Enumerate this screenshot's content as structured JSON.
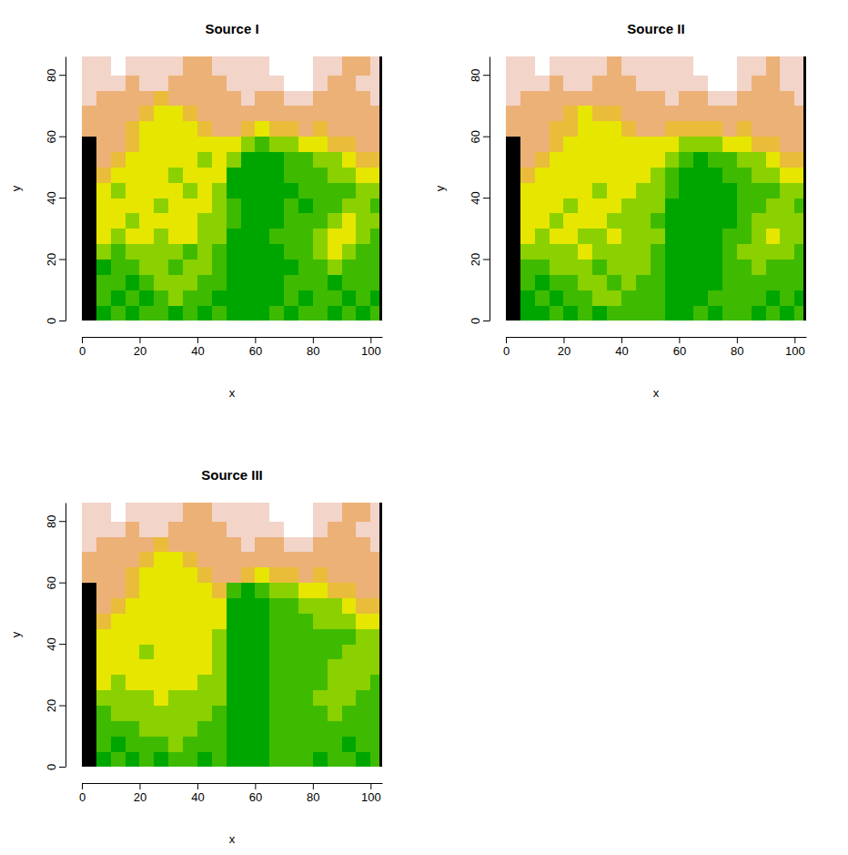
{
  "chart_data": [
    {
      "type": "heatmap",
      "title": "Source I",
      "xlabel": "x",
      "ylabel": "y",
      "xlim": [
        0,
        104
      ],
      "ylim": [
        0,
        86
      ],
      "xticks": [
        0,
        20,
        40,
        60,
        80,
        100
      ],
      "yticks": [
        0,
        20,
        40,
        60,
        80
      ],
      "x_breaks": [
        0,
        5,
        10,
        15,
        20,
        25,
        30,
        35,
        40,
        45,
        50,
        55,
        60,
        65,
        70,
        75,
        80,
        85,
        90,
        95,
        100,
        103,
        104
      ],
      "y_breaks": [
        0,
        5,
        10,
        15,
        20,
        25,
        30,
        35,
        40,
        45,
        50,
        55,
        60,
        65,
        70,
        75,
        80,
        86
      ],
      "colors": [
        "#000000",
        "#00A600",
        "#3EBB00",
        "#8BD000",
        "#E6E600",
        "#E9BD3A",
        "#ECB176",
        "#F2D4C9",
        "#FFFFFF"
      ],
      "cells": [
        [
          0,
          1,
          2,
          1,
          2,
          2,
          1,
          2,
          1,
          2,
          1,
          1,
          1,
          2,
          1,
          2,
          2,
          1,
          2,
          1,
          2,
          0
        ],
        [
          0,
          2,
          1,
          2,
          1,
          2,
          3,
          2,
          2,
          1,
          1,
          1,
          1,
          1,
          2,
          1,
          2,
          2,
          1,
          2,
          1,
          0
        ],
        [
          0,
          2,
          2,
          1,
          2,
          3,
          3,
          3,
          2,
          2,
          1,
          1,
          1,
          1,
          2,
          2,
          2,
          1,
          2,
          2,
          2,
          0
        ],
        [
          0,
          1,
          2,
          2,
          3,
          3,
          2,
          3,
          3,
          2,
          1,
          1,
          1,
          1,
          1,
          2,
          2,
          3,
          2,
          2,
          2,
          0
        ],
        [
          0,
          3,
          2,
          3,
          3,
          3,
          3,
          2,
          3,
          2,
          1,
          1,
          1,
          1,
          2,
          2,
          3,
          4,
          3,
          2,
          2,
          0
        ],
        [
          0,
          4,
          3,
          4,
          4,
          3,
          4,
          4,
          3,
          3,
          1,
          1,
          1,
          2,
          2,
          2,
          3,
          4,
          4,
          3,
          2,
          0
        ],
        [
          0,
          4,
          4,
          3,
          4,
          4,
          4,
          4,
          3,
          3,
          2,
          1,
          1,
          1,
          2,
          2,
          2,
          3,
          4,
          3,
          3,
          0
        ],
        [
          0,
          4,
          4,
          4,
          4,
          3,
          4,
          4,
          4,
          3,
          2,
          1,
          1,
          1,
          2,
          1,
          2,
          2,
          3,
          3,
          2,
          0
        ],
        [
          0,
          4,
          3,
          4,
          4,
          4,
          4,
          3,
          4,
          3,
          1,
          1,
          1,
          1,
          1,
          2,
          2,
          2,
          2,
          3,
          3,
          0
        ],
        [
          0,
          5,
          4,
          4,
          4,
          4,
          3,
          4,
          4,
          4,
          1,
          1,
          1,
          1,
          2,
          2,
          2,
          3,
          3,
          4,
          4,
          0
        ],
        [
          0,
          6,
          5,
          4,
          4,
          4,
          4,
          4,
          3,
          4,
          3,
          1,
          1,
          1,
          2,
          2,
          3,
          3,
          4,
          5,
          5,
          0
        ],
        [
          0,
          6,
          6,
          5,
          4,
          4,
          4,
          4,
          4,
          4,
          4,
          3,
          2,
          3,
          3,
          4,
          4,
          5,
          5,
          6,
          6,
          0
        ],
        [
          6,
          6,
          6,
          5,
          4,
          4,
          4,
          4,
          5,
          6,
          6,
          5,
          4,
          5,
          5,
          6,
          5,
          6,
          6,
          6,
          6,
          0
        ],
        [
          6,
          6,
          6,
          6,
          5,
          4,
          4,
          5,
          6,
          6,
          6,
          6,
          6,
          6,
          6,
          6,
          6,
          6,
          6,
          6,
          6,
          0
        ],
        [
          7,
          6,
          6,
          6,
          6,
          5,
          6,
          6,
          6,
          6,
          6,
          7,
          6,
          6,
          7,
          7,
          6,
          6,
          6,
          6,
          7,
          0
        ],
        [
          7,
          7,
          7,
          6,
          7,
          7,
          6,
          6,
          6,
          6,
          7,
          7,
          7,
          7,
          8,
          8,
          7,
          6,
          6,
          7,
          7,
          0
        ],
        [
          7,
          7,
          8,
          7,
          7,
          7,
          7,
          6,
          6,
          7,
          7,
          7,
          7,
          8,
          8,
          8,
          7,
          7,
          6,
          6,
          7,
          0
        ]
      ]
    },
    {
      "type": "heatmap",
      "title": "Source II",
      "xlabel": "x",
      "ylabel": "y",
      "xlim": [
        0,
        104
      ],
      "ylim": [
        0,
        86
      ],
      "xticks": [
        0,
        20,
        40,
        60,
        80,
        100
      ],
      "yticks": [
        0,
        20,
        40,
        60,
        80
      ],
      "x_breaks": [
        0,
        5,
        10,
        15,
        20,
        25,
        30,
        35,
        40,
        45,
        50,
        55,
        60,
        65,
        70,
        75,
        80,
        85,
        90,
        95,
        100,
        103,
        104
      ],
      "y_breaks": [
        0,
        5,
        10,
        15,
        20,
        25,
        30,
        35,
        40,
        45,
        50,
        55,
        60,
        65,
        70,
        75,
        80,
        86
      ],
      "colors": [
        "#000000",
        "#00A600",
        "#3EBB00",
        "#8BD000",
        "#E6E600",
        "#E9BD3A",
        "#ECB176",
        "#F2D4C9",
        "#FFFFFF"
      ],
      "cells": [
        [
          0,
          1,
          1,
          2,
          1,
          2,
          1,
          2,
          2,
          2,
          2,
          1,
          1,
          2,
          1,
          2,
          2,
          1,
          2,
          1,
          2,
          0
        ],
        [
          0,
          1,
          2,
          1,
          2,
          2,
          3,
          3,
          2,
          2,
          2,
          1,
          1,
          1,
          2,
          2,
          2,
          2,
          1,
          2,
          1,
          0
        ],
        [
          0,
          2,
          1,
          2,
          2,
          3,
          3,
          2,
          3,
          2,
          2,
          1,
          1,
          1,
          1,
          2,
          2,
          2,
          2,
          2,
          2,
          0
        ],
        [
          0,
          2,
          2,
          3,
          3,
          3,
          2,
          3,
          3,
          3,
          2,
          1,
          1,
          1,
          1,
          2,
          2,
          3,
          2,
          2,
          2,
          0
        ],
        [
          0,
          3,
          3,
          3,
          3,
          4,
          3,
          3,
          3,
          3,
          2,
          1,
          1,
          1,
          1,
          2,
          3,
          3,
          3,
          3,
          2,
          0
        ],
        [
          0,
          4,
          3,
          4,
          4,
          3,
          3,
          4,
          3,
          3,
          3,
          1,
          1,
          1,
          1,
          2,
          2,
          3,
          4,
          3,
          3,
          0
        ],
        [
          0,
          4,
          4,
          3,
          4,
          4,
          4,
          3,
          3,
          3,
          2,
          1,
          1,
          1,
          1,
          1,
          2,
          3,
          3,
          3,
          3,
          0
        ],
        [
          0,
          4,
          4,
          4,
          3,
          4,
          4,
          4,
          3,
          3,
          3,
          1,
          1,
          1,
          1,
          1,
          2,
          2,
          3,
          3,
          2,
          0
        ],
        [
          0,
          4,
          4,
          4,
          4,
          4,
          3,
          4,
          4,
          3,
          3,
          2,
          1,
          1,
          1,
          1,
          2,
          2,
          2,
          3,
          3,
          0
        ],
        [
          0,
          5,
          4,
          4,
          4,
          4,
          4,
          4,
          4,
          4,
          3,
          2,
          1,
          1,
          1,
          2,
          2,
          3,
          3,
          4,
          4,
          0
        ],
        [
          0,
          6,
          5,
          4,
          4,
          4,
          4,
          4,
          4,
          4,
          4,
          3,
          2,
          1,
          2,
          2,
          3,
          3,
          4,
          5,
          5,
          0
        ],
        [
          0,
          6,
          6,
          5,
          4,
          4,
          4,
          4,
          4,
          4,
          4,
          4,
          3,
          3,
          3,
          4,
          4,
          5,
          5,
          6,
          6,
          0
        ],
        [
          6,
          6,
          6,
          5,
          5,
          4,
          4,
          4,
          5,
          6,
          6,
          5,
          5,
          5,
          5,
          6,
          5,
          6,
          6,
          6,
          6,
          0
        ],
        [
          6,
          6,
          6,
          6,
          5,
          4,
          5,
          5,
          6,
          6,
          6,
          6,
          6,
          6,
          6,
          6,
          6,
          6,
          6,
          6,
          6,
          0
        ],
        [
          7,
          6,
          6,
          6,
          6,
          6,
          6,
          6,
          6,
          6,
          6,
          7,
          6,
          6,
          7,
          7,
          6,
          6,
          6,
          6,
          7,
          0
        ],
        [
          7,
          7,
          7,
          6,
          7,
          7,
          6,
          6,
          6,
          7,
          7,
          7,
          7,
          7,
          8,
          8,
          7,
          6,
          6,
          7,
          7,
          0
        ],
        [
          7,
          7,
          8,
          7,
          7,
          7,
          7,
          6,
          7,
          7,
          7,
          7,
          7,
          8,
          8,
          8,
          7,
          7,
          6,
          7,
          7,
          0
        ]
      ]
    },
    {
      "type": "heatmap",
      "title": "Source III",
      "xlabel": "x",
      "ylabel": "y",
      "xlim": [
        0,
        104
      ],
      "ylim": [
        0,
        86
      ],
      "xticks": [
        0,
        20,
        40,
        60,
        80,
        100
      ],
      "yticks": [
        0,
        20,
        40,
        60,
        80
      ],
      "x_breaks": [
        0,
        5,
        10,
        15,
        20,
        25,
        30,
        35,
        40,
        45,
        50,
        55,
        60,
        65,
        70,
        75,
        80,
        85,
        90,
        95,
        100,
        103,
        104
      ],
      "y_breaks": [
        0,
        5,
        10,
        15,
        20,
        25,
        30,
        35,
        40,
        45,
        50,
        55,
        60,
        65,
        70,
        75,
        80,
        86
      ],
      "colors": [
        "#000000",
        "#00A600",
        "#3EBB00",
        "#8BD000",
        "#E6E600",
        "#E9BD3A",
        "#ECB176",
        "#F2D4C9",
        "#FFFFFF"
      ],
      "cells": [
        [
          0,
          1,
          2,
          1,
          2,
          1,
          2,
          2,
          1,
          2,
          1,
          1,
          1,
          2,
          2,
          2,
          1,
          2,
          2,
          1,
          2,
          0
        ],
        [
          0,
          2,
          1,
          2,
          2,
          2,
          3,
          2,
          2,
          2,
          1,
          1,
          1,
          2,
          2,
          2,
          2,
          2,
          1,
          2,
          2,
          0
        ],
        [
          0,
          2,
          2,
          2,
          3,
          3,
          3,
          3,
          2,
          2,
          1,
          1,
          1,
          2,
          2,
          2,
          2,
          2,
          2,
          2,
          2,
          0
        ],
        [
          0,
          2,
          3,
          3,
          3,
          3,
          3,
          3,
          3,
          2,
          1,
          1,
          1,
          2,
          2,
          2,
          2,
          3,
          2,
          2,
          2,
          0
        ],
        [
          0,
          3,
          3,
          3,
          3,
          4,
          3,
          3,
          3,
          3,
          1,
          1,
          1,
          2,
          2,
          2,
          3,
          3,
          3,
          2,
          2,
          0
        ],
        [
          0,
          4,
          3,
          4,
          4,
          4,
          4,
          4,
          3,
          3,
          1,
          1,
          1,
          2,
          2,
          2,
          2,
          3,
          3,
          3,
          2,
          0
        ],
        [
          0,
          4,
          4,
          4,
          4,
          4,
          4,
          4,
          4,
          3,
          1,
          1,
          1,
          2,
          2,
          2,
          2,
          3,
          3,
          3,
          3,
          0
        ],
        [
          0,
          4,
          4,
          4,
          3,
          4,
          4,
          4,
          4,
          3,
          1,
          1,
          1,
          2,
          2,
          2,
          2,
          2,
          3,
          3,
          3,
          0
        ],
        [
          0,
          4,
          4,
          4,
          4,
          4,
          4,
          4,
          4,
          3,
          1,
          1,
          1,
          2,
          2,
          2,
          2,
          2,
          2,
          3,
          3,
          0
        ],
        [
          0,
          5,
          4,
          4,
          4,
          4,
          4,
          4,
          4,
          4,
          1,
          1,
          1,
          2,
          2,
          2,
          3,
          3,
          3,
          4,
          4,
          0
        ],
        [
          0,
          6,
          5,
          4,
          4,
          4,
          4,
          4,
          4,
          4,
          1,
          1,
          1,
          2,
          2,
          3,
          3,
          3,
          4,
          5,
          5,
          0
        ],
        [
          0,
          6,
          6,
          5,
          4,
          4,
          4,
          4,
          4,
          5,
          2,
          1,
          2,
          3,
          3,
          4,
          4,
          5,
          5,
          6,
          6,
          0
        ],
        [
          6,
          6,
          6,
          5,
          4,
          4,
          4,
          4,
          5,
          6,
          6,
          5,
          4,
          5,
          5,
          6,
          5,
          6,
          6,
          6,
          6,
          0
        ],
        [
          6,
          6,
          6,
          6,
          5,
          4,
          4,
          5,
          6,
          6,
          6,
          6,
          6,
          6,
          6,
          6,
          6,
          6,
          6,
          6,
          6,
          0
        ],
        [
          7,
          6,
          6,
          6,
          6,
          5,
          6,
          6,
          6,
          6,
          6,
          7,
          6,
          6,
          7,
          7,
          6,
          6,
          6,
          6,
          7,
          0
        ],
        [
          7,
          7,
          7,
          6,
          7,
          7,
          6,
          6,
          6,
          6,
          7,
          7,
          7,
          7,
          8,
          8,
          7,
          6,
          6,
          7,
          7,
          0
        ],
        [
          7,
          7,
          8,
          7,
          7,
          7,
          7,
          6,
          6,
          7,
          7,
          7,
          7,
          8,
          8,
          8,
          7,
          7,
          6,
          6,
          7,
          0
        ]
      ]
    }
  ]
}
